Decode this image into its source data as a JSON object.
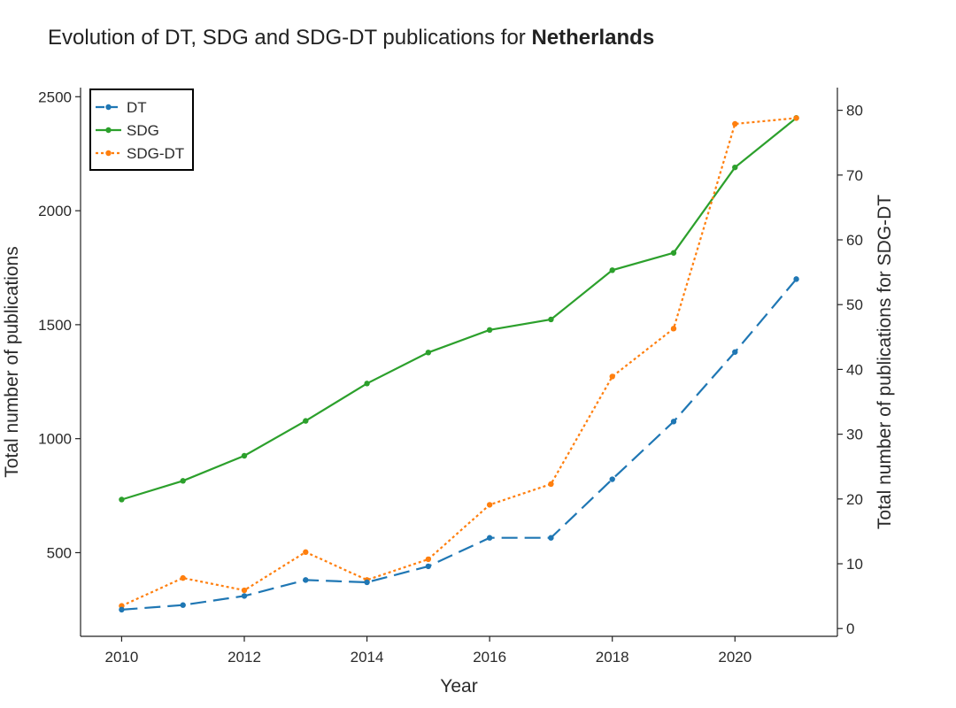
{
  "chart_data": {
    "type": "line",
    "title": "Evolution of DT, SDG and SDG-DT publications for",
    "title_emphasis": "Netherlands",
    "xlabel": "Year",
    "ylabel_left": "Total number of publications",
    "ylabel_right": "Total number of publications for SDG-DT",
    "x": [
      2010,
      2011,
      2012,
      2013,
      2014,
      2015,
      2016,
      2017,
      2018,
      2019,
      2020,
      2021
    ],
    "xlim": [
      2009.33,
      2021.67
    ],
    "xticks": [
      2010,
      2012,
      2014,
      2016,
      2018,
      2020
    ],
    "ylim_left": [
      133,
      2540
    ],
    "yticks_left": [
      500,
      1000,
      1500,
      2000,
      2500
    ],
    "ylim_right": [
      -1.2,
      83.5
    ],
    "yticks_right": [
      0,
      10,
      20,
      30,
      40,
      50,
      60,
      70,
      80
    ],
    "legend_position": "top-left",
    "grid": false,
    "series": [
      {
        "name": "DT",
        "axis": "left",
        "color": "#1f77b4",
        "dash": "dashed",
        "values": [
          250,
          270,
          310,
          380,
          370,
          440,
          565,
          565,
          822,
          1075,
          1380,
          1700
        ]
      },
      {
        "name": "SDG",
        "axis": "left",
        "color": "#2ca02c",
        "dash": "solid",
        "values": [
          733,
          815,
          925,
          1078,
          1242,
          1378,
          1477,
          1523,
          1739,
          1815,
          2190,
          2407
        ]
      },
      {
        "name": "SDG-DT",
        "axis": "right",
        "color": "#ff7f0e",
        "dash": "dotted",
        "values": [
          3.5,
          7.8,
          5.9,
          11.8,
          7.5,
          10.7,
          19.1,
          22.3,
          38.9,
          46.3,
          77.9,
          78.8
        ]
      }
    ]
  }
}
